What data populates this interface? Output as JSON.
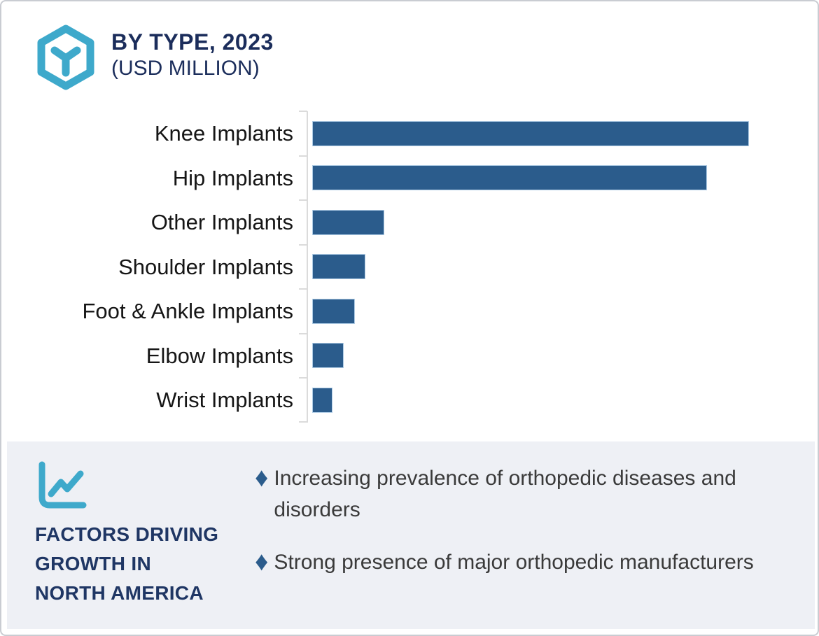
{
  "header": {
    "title": "BY TYPE, 2023",
    "subtitle": "(USD MILLION)",
    "logo_icon": "hexagon-y-icon",
    "accent_color": "#3ea9cb",
    "title_color": "#1b2d5b"
  },
  "chart_data": {
    "type": "bar",
    "orientation": "horizontal",
    "title": "BY TYPE, 2023 (USD MILLION)",
    "categories": [
      "Knee Implants",
      "Hip Implants",
      "Other Implants",
      "Shoulder Implants",
      "Foot & Ankle Implants",
      "Elbow Implants",
      "Wrist Implants"
    ],
    "values": [
      100,
      90.4,
      16.5,
      12.2,
      9.8,
      7.2,
      4.6
    ],
    "value_scale": "percent of longest bar; no numeric axis labels or data labels are visible in the chart",
    "value_labels_visible": false,
    "grid": false,
    "legend": false,
    "bar_color": "#2b5c8c",
    "bar_border_color": "#aecbe4",
    "axis_color": "#dbdbdb",
    "label_color": "#151515"
  },
  "factors_panel": {
    "icon": "line-chart-icon",
    "title": "FACTORS DRIVING\nGROWTH IN\nNORTH AMERICA",
    "bullet_marker": "♦",
    "bullets": [
      "Increasing prevalence of orthopedic diseases and disorders",
      "Strong presence of major orthopedic manufacturers"
    ],
    "background": "#eef0f5",
    "marker_color": "#2b5c8c"
  }
}
